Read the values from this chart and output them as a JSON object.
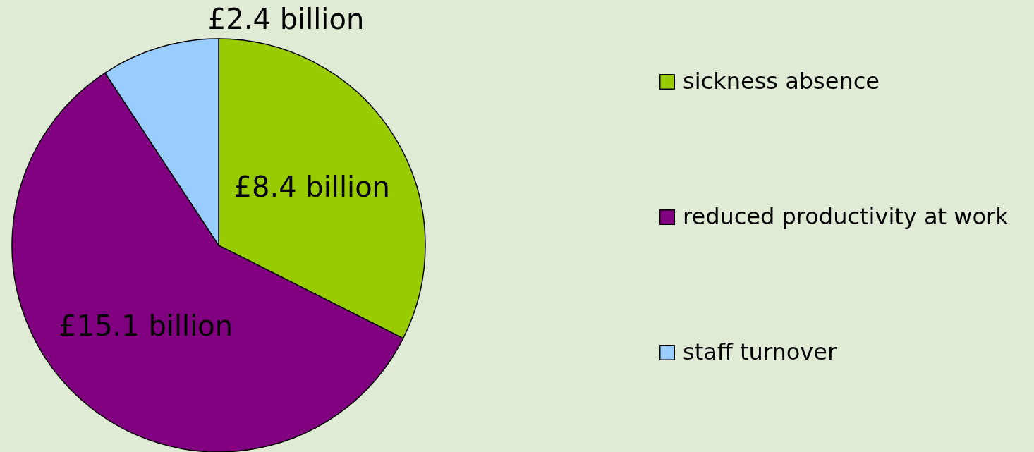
{
  "chart_data": {
    "type": "pie",
    "categories": [
      "sickness absence",
      "reduced productivity at work",
      "staff turnover"
    ],
    "values": [
      8.4,
      15.1,
      2.4
    ],
    "colors": [
      "#99cc00",
      "#800080",
      "#99ccff"
    ],
    "value_labels": [
      "£8.4 billion",
      "£15.1 billion",
      "£2.4 billion"
    ],
    "legend": "right"
  }
}
